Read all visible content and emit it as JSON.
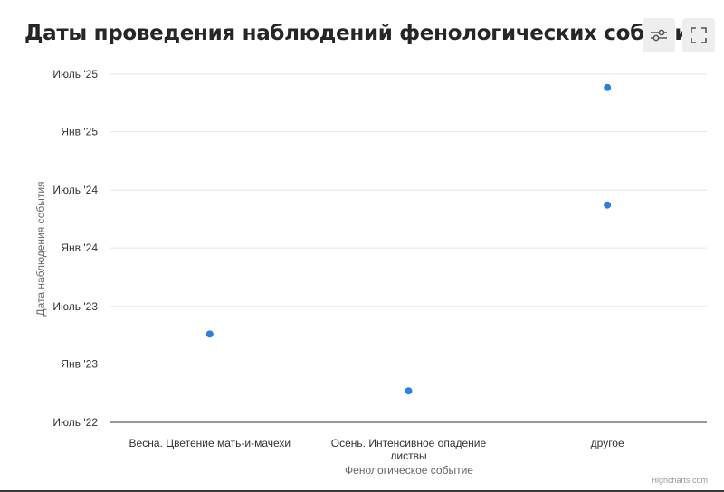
{
  "header": {
    "title": "Даты проведения наблюдений фенологических событий",
    "filter_icon": "sliders-icon",
    "fullscreen_icon": "fullscreen-icon"
  },
  "chart_data": {
    "type": "scatter",
    "title": "Даты проведения наблюдений фенологических событий",
    "xlabel": "Фенологическое событие",
    "ylabel": "Дата наблюдения события",
    "categories": [
      "Весна. Цветение мать-и-мачехи",
      "Осень. Интенсивное опадение листвы",
      "другое"
    ],
    "category_lines": [
      [
        "Весна. Цветение мать-и-мачехи"
      ],
      [
        "Осень. Интенсивное опадение",
        "листвы"
      ],
      [
        "другое"
      ]
    ],
    "y_ticks": [
      {
        "label": "Июль '22",
        "value": "2022-07-01"
      },
      {
        "label": "Янв '23",
        "value": "2023-01-01"
      },
      {
        "label": "Июль '23",
        "value": "2023-07-01"
      },
      {
        "label": "Янв '24",
        "value": "2024-01-01"
      },
      {
        "label": "Июль '24",
        "value": "2024-07-01"
      },
      {
        "label": "Янв '25",
        "value": "2025-01-01"
      },
      {
        "label": "Июль '25",
        "value": "2025-07-01"
      }
    ],
    "ylim": [
      "2022-07-01",
      "2025-07-01"
    ],
    "points": [
      {
        "category": "Весна. Цветение мать-и-мачехи",
        "date": "2023-04-05"
      },
      {
        "category": "Осень. Интенсивное опадение листвы",
        "date": "2022-10-08"
      },
      {
        "category": "другое",
        "date": "2024-05-15"
      },
      {
        "category": "другое",
        "date": "2025-05-20"
      }
    ],
    "point_color": "#2f7ed8",
    "grid": true,
    "legend": false
  },
  "credits": "Highcharts.com"
}
